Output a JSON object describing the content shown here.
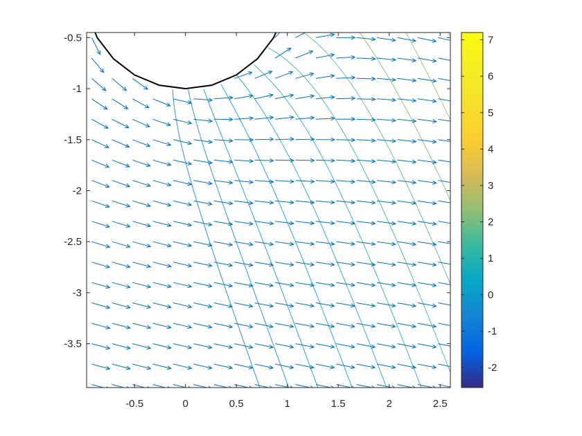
{
  "chart_data": {
    "type": "contour-quiver",
    "title": "",
    "xlabel": "",
    "ylabel": "",
    "xlim": [
      -0.97,
      2.6
    ],
    "ylim": [
      -3.93,
      -0.45
    ],
    "xticks": [
      -0.5,
      0,
      0.5,
      1,
      1.5,
      2,
      2.5
    ],
    "xtick_labels": [
      "-0.5",
      "0",
      "0.5",
      "1",
      "1.5",
      "2",
      "2.5"
    ],
    "yticks": [
      -0.5,
      -1,
      -1.5,
      -2,
      -2.5,
      -3,
      -3.5
    ],
    "ytick_labels": [
      "-0.5",
      "-1",
      "-1.5",
      "-2",
      "-2.5",
      "-3",
      "-3.5"
    ],
    "grid": false,
    "colormap": "parula",
    "colorbar": {
      "range": [
        -2.55,
        7.2
      ],
      "ticks": [
        -2,
        -1,
        0,
        1,
        2,
        3,
        4,
        5,
        6,
        7
      ],
      "tick_labels": [
        "-2",
        "-1",
        "0",
        "1",
        "2",
        "3",
        "4",
        "5",
        "6",
        "7"
      ],
      "placement": "right"
    },
    "obstacle": {
      "shape": "circle",
      "center": [
        0,
        0
      ],
      "radius": 1
    },
    "contour_levels": [
      -0.6,
      -0.3,
      0,
      0.35,
      0.7,
      1.05,
      1.4,
      1.75,
      2.1,
      2.45,
      2.8,
      3.2,
      3.6,
      4.0,
      4.5
    ],
    "quiver_color": "#0072BD",
    "obstacle_color": "#000000"
  }
}
